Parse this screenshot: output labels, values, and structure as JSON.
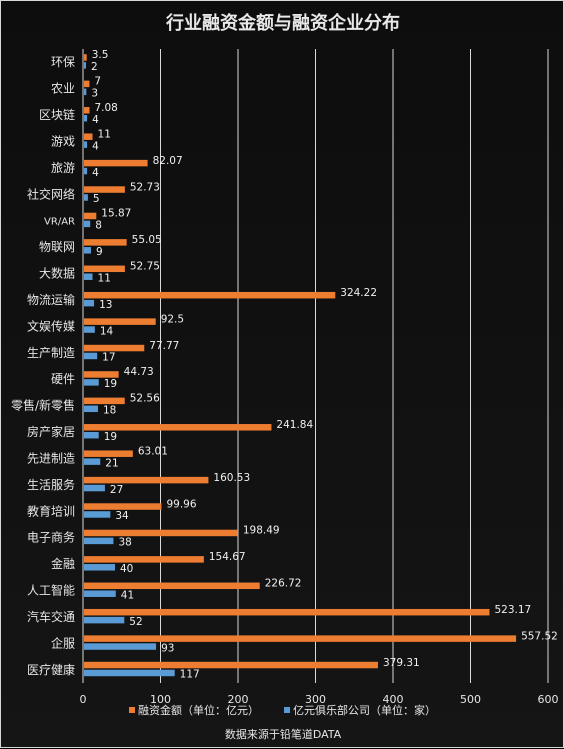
{
  "colors": {
    "funding": "#ed7d31",
    "companies": "#5b9bd5",
    "grid": "#d9d9d9",
    "background": "#111111"
  },
  "chart_data": {
    "type": "bar",
    "orientation": "horizontal",
    "title": "行业融资金额与融资企业分布",
    "categories": [
      "环保",
      "农业",
      "区块链",
      "游戏",
      "旅游",
      "社交网络",
      "VR/AR",
      "物联网",
      "大数据",
      "物流运输",
      "文娱传媒",
      "生产制造",
      "硬件",
      "零售/新零售",
      "房产家居",
      "先进制造",
      "生活服务",
      "教育培训",
      "电子商务",
      "金融",
      "人工智能",
      "汽车交通",
      "企服",
      "医疗健康"
    ],
    "series": [
      {
        "name": "融资金额（单位：亿元）",
        "color": "#ed7d31",
        "values": [
          3.5,
          7,
          7.08,
          11,
          82.07,
          52.73,
          15.87,
          55.05,
          52.75,
          324.22,
          92.5,
          77.77,
          44.73,
          52.56,
          241.84,
          63.01,
          160.53,
          99.96,
          198.49,
          154.67,
          226.72,
          523.17,
          557.52,
          379.31
        ],
        "labels": [
          "3.5",
          "7",
          "7.08",
          "11",
          "82.07",
          "52.73",
          "15.87",
          "55.05",
          "52.75",
          "324.22",
          "92.5",
          "77.77",
          "44.73",
          "52.56",
          "241.84",
          "63.01",
          "160.53",
          "99.96",
          "198.49",
          "154.67",
          "226.72",
          "523.17",
          "557.52",
          "379.31"
        ]
      },
      {
        "name": "亿元俱乐部公司（单位：家）",
        "color": "#5b9bd5",
        "values": [
          2,
          3,
          4,
          4,
          4,
          5,
          8,
          9,
          11,
          13,
          14,
          17,
          19,
          18,
          19,
          21,
          27,
          34,
          38,
          40,
          41,
          52,
          93,
          117
        ],
        "labels": [
          "2",
          "3",
          "4",
          "4",
          "4",
          "5",
          "8",
          "9",
          "11",
          "13",
          "14",
          "17",
          "19",
          "18",
          "19",
          "21",
          "27",
          "34",
          "38",
          "40",
          "41",
          "52",
          "93",
          "117"
        ]
      }
    ],
    "xlim": [
      0,
      600
    ],
    "xticks": [
      "0",
      "100",
      "200",
      "300",
      "400",
      "500",
      "600"
    ],
    "xtick_values": [
      0,
      100,
      200,
      300,
      400,
      500,
      600
    ],
    "xlabel": "",
    "ylabel": "",
    "grid": true,
    "legend_position": "bottom"
  },
  "source_note": "数据来源于铅笔道DATA"
}
